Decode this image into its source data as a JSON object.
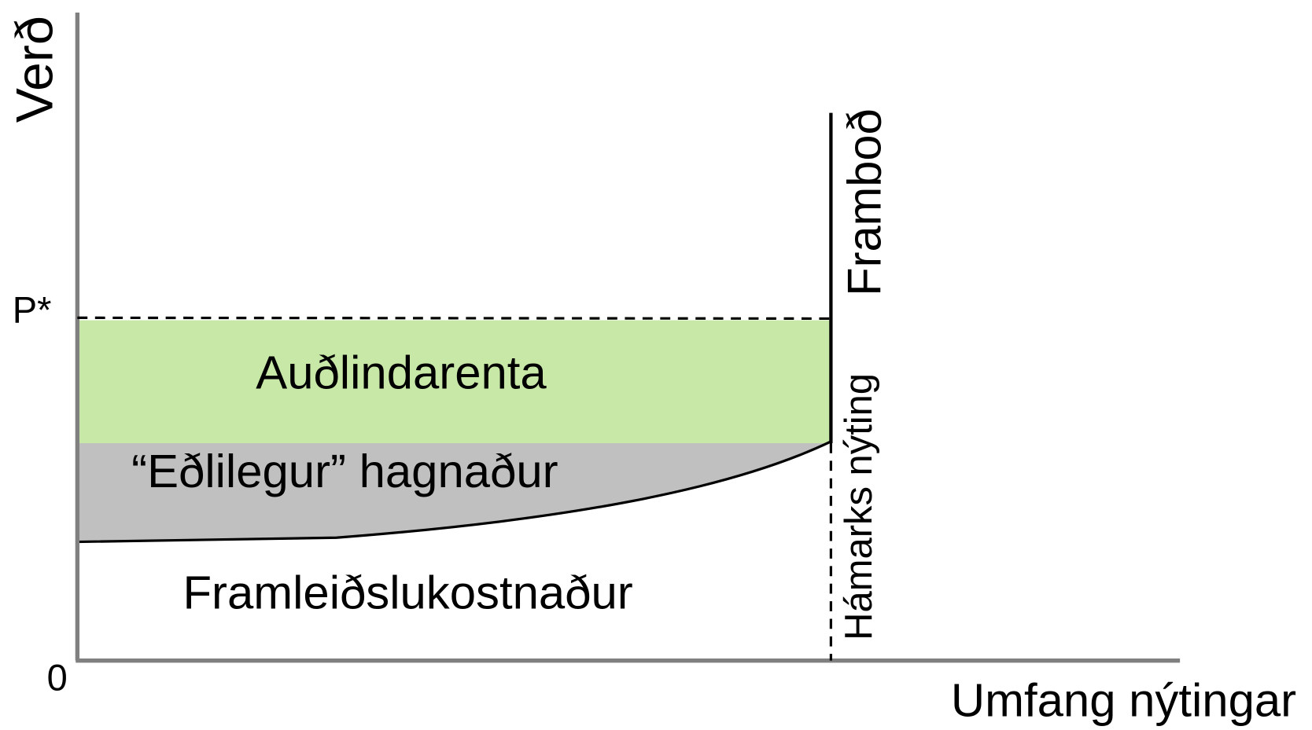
{
  "axes": {
    "y_label": "Verð",
    "x_label": "Umfang nýtingar",
    "price_label": "P*",
    "origin_label": "0"
  },
  "curves": {
    "supply": "Framboð",
    "max_use": "Hámarks nýting"
  },
  "areas": {
    "rent": "Auðlindarenta",
    "normal_profit": "“Eðlilegur” hagnaður",
    "cost": "Framleiðslukostnaður"
  }
}
